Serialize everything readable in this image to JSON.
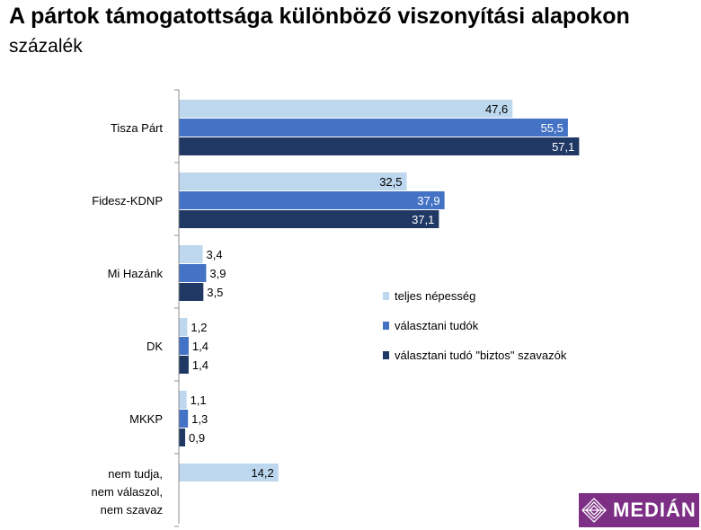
{
  "chart_data": {
    "type": "bar",
    "orientation": "horizontal",
    "title": "A pártok támogatottsága különböző viszonyítási alapokon",
    "subtitle": "százalék",
    "categories": [
      [
        "Tisza Párt"
      ],
      [
        "Fidesz-KDNP"
      ],
      [
        "Mi Hazánk"
      ],
      [
        "DK"
      ],
      [
        "MKKP"
      ],
      [
        "nem tudja,",
        "nem válaszol,",
        "nem szavaz"
      ]
    ],
    "series": [
      {
        "name": "teljes népesség",
        "color": "#bdd7ee",
        "values": [
          47.6,
          32.5,
          3.4,
          1.2,
          1.1,
          14.2
        ],
        "labels": [
          "47,6",
          "32,5",
          "3,4",
          "1,2",
          "1,1",
          "14,2"
        ]
      },
      {
        "name": "választani tudók",
        "color": "#4472c4",
        "values": [
          55.5,
          37.9,
          3.9,
          1.4,
          1.3,
          null
        ],
        "labels": [
          "55,5",
          "37,9",
          "3,9",
          "1,4",
          "1,3",
          null
        ]
      },
      {
        "name": "választani tudó \"biztos\" szavazók",
        "color": "#203864",
        "values": [
          57.1,
          37.1,
          3.5,
          1.4,
          0.9,
          null
        ],
        "labels": [
          "57,1",
          "37,1",
          "3,5",
          "1,4",
          "0,9",
          null
        ]
      }
    ],
    "xlim": [
      0,
      75
    ],
    "grid": false,
    "legend": "right"
  },
  "logo": {
    "text": "MEDIÁN"
  }
}
